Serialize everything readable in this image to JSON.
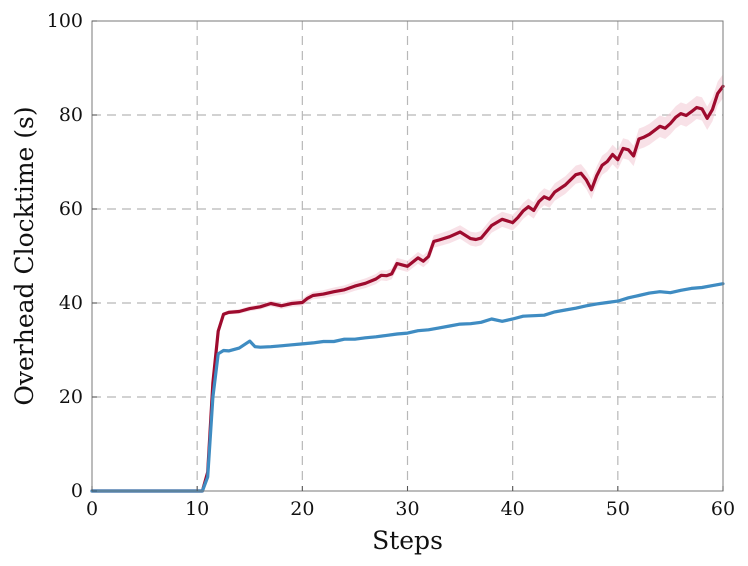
{
  "chart_data": {
    "type": "line",
    "xlabel": "Steps",
    "ylabel": "Overhead Clocktime (s)",
    "xlim": [
      0,
      60
    ],
    "ylim": [
      0,
      100
    ],
    "xticks": [
      0,
      10,
      20,
      30,
      40,
      50,
      60
    ],
    "yticks": [
      0,
      20,
      40,
      60,
      80,
      100
    ],
    "xtick_labels": [
      "0",
      "10",
      "20",
      "30",
      "40",
      "50",
      "60"
    ],
    "ytick_labels": [
      "0",
      "20",
      "40",
      "60",
      "80",
      "100"
    ],
    "grid": true,
    "legend": "none",
    "series": [
      {
        "color": "#9e0b2e",
        "band_color": "#f3c9d3",
        "band_opacity": 0.55,
        "points": [
          [
            0,
            0
          ],
          [
            10.5,
            0
          ],
          [
            11,
            4
          ],
          [
            11.5,
            23
          ],
          [
            12,
            34
          ],
          [
            12.5,
            37.6
          ],
          [
            13,
            38
          ],
          [
            14,
            38.2
          ],
          [
            15,
            38.8
          ],
          [
            16,
            39.2
          ],
          [
            17,
            39.9
          ],
          [
            18,
            39.4
          ],
          [
            19,
            39.9
          ],
          [
            20,
            40.1
          ],
          [
            20.5,
            41
          ],
          [
            21,
            41.6
          ],
          [
            22,
            41.9
          ],
          [
            23,
            42.4
          ],
          [
            24,
            42.8
          ],
          [
            25,
            43.6
          ],
          [
            26,
            44.2
          ],
          [
            27,
            45.1
          ],
          [
            27.5,
            45.9
          ],
          [
            28,
            45.8
          ],
          [
            28.5,
            46.2
          ],
          [
            29,
            48.4
          ],
          [
            29.5,
            48.1
          ],
          [
            30,
            47.8
          ],
          [
            31,
            49.6
          ],
          [
            31.5,
            48.9
          ],
          [
            32,
            49.9
          ],
          [
            32.5,
            53.1
          ],
          [
            33,
            53.4
          ],
          [
            34,
            54.1
          ],
          [
            35,
            55.1
          ],
          [
            36,
            53.7
          ],
          [
            36.5,
            53.5
          ],
          [
            37,
            53.8
          ],
          [
            38,
            56.5
          ],
          [
            39,
            57.8
          ],
          [
            40,
            57.1
          ],
          [
            40.5,
            58.2
          ],
          [
            41,
            59.6
          ],
          [
            41.5,
            60.5
          ],
          [
            42,
            59.7
          ],
          [
            42.5,
            61.6
          ],
          [
            43,
            62.6
          ],
          [
            43.5,
            62.1
          ],
          [
            44,
            63.6
          ],
          [
            45,
            65.1
          ],
          [
            46,
            67.3
          ],
          [
            46.5,
            67.6
          ],
          [
            47,
            66.2
          ],
          [
            47.5,
            64.1
          ],
          [
            48,
            67.1
          ],
          [
            48.5,
            69.3
          ],
          [
            49,
            70.1
          ],
          [
            49.5,
            71.6
          ],
          [
            50,
            70.5
          ],
          [
            50.5,
            72.9
          ],
          [
            51,
            72.6
          ],
          [
            51.5,
            71.3
          ],
          [
            52,
            74.9
          ],
          [
            52.5,
            75.3
          ],
          [
            53,
            75.9
          ],
          [
            54,
            77.6
          ],
          [
            54.5,
            77.2
          ],
          [
            55,
            78.2
          ],
          [
            55.5,
            79.5
          ],
          [
            56,
            80.3
          ],
          [
            56.5,
            79.9
          ],
          [
            57,
            80.7
          ],
          [
            57.5,
            81.6
          ],
          [
            58,
            81.3
          ],
          [
            58.5,
            79.3
          ],
          [
            59,
            81.2
          ],
          [
            59.5,
            84.6
          ],
          [
            60,
            86.1
          ]
        ]
      },
      {
        "color": "#3f8cc2",
        "band_color": "#bcd9ee",
        "band_opacity": 0.5,
        "points": [
          [
            0,
            0
          ],
          [
            10.5,
            0
          ],
          [
            11,
            3
          ],
          [
            11.5,
            20
          ],
          [
            12,
            29.2
          ],
          [
            12.5,
            29.9
          ],
          [
            13,
            29.8
          ],
          [
            14,
            30.4
          ],
          [
            15,
            31.9
          ],
          [
            15.5,
            30.7
          ],
          [
            16,
            30.6
          ],
          [
            17,
            30.7
          ],
          [
            18,
            30.9
          ],
          [
            19,
            31.1
          ],
          [
            20,
            31.3
          ],
          [
            21,
            31.5
          ],
          [
            22,
            31.8
          ],
          [
            23,
            31.8
          ],
          [
            24,
            32.3
          ],
          [
            25,
            32.3
          ],
          [
            26,
            32.6
          ],
          [
            27,
            32.8
          ],
          [
            28,
            33.1
          ],
          [
            29,
            33.4
          ],
          [
            30,
            33.6
          ],
          [
            31,
            34.1
          ],
          [
            32,
            34.3
          ],
          [
            33,
            34.7
          ],
          [
            34,
            35.1
          ],
          [
            35,
            35.5
          ],
          [
            36,
            35.6
          ],
          [
            37,
            35.9
          ],
          [
            38,
            36.6
          ],
          [
            39,
            36.1
          ],
          [
            40,
            36.6
          ],
          [
            41,
            37.2
          ],
          [
            42,
            37.3
          ],
          [
            43,
            37.4
          ],
          [
            44,
            38.1
          ],
          [
            45,
            38.5
          ],
          [
            46,
            38.9
          ],
          [
            47,
            39.4
          ],
          [
            48,
            39.8
          ],
          [
            49,
            40.1
          ],
          [
            50,
            40.4
          ],
          [
            51,
            41.1
          ],
          [
            52,
            41.6
          ],
          [
            53,
            42.1
          ],
          [
            54,
            42.4
          ],
          [
            55,
            42.2
          ],
          [
            56,
            42.7
          ],
          [
            57,
            43.1
          ],
          [
            58,
            43.3
          ],
          [
            59,
            43.7
          ],
          [
            60,
            44.1
          ]
        ]
      }
    ]
  }
}
